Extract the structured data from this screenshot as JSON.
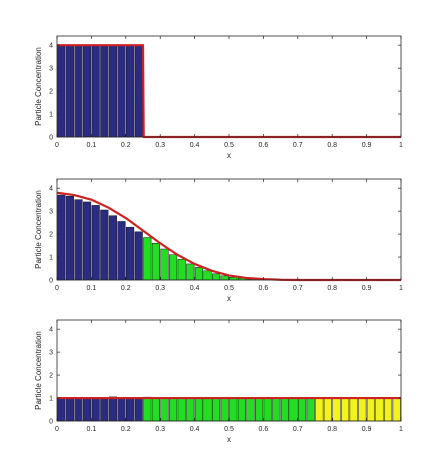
{
  "colors": {
    "blue": "#2b2b82",
    "green": "#22dd22",
    "yellow": "#f2f21c",
    "curve": "#cc2222",
    "axis": "#262626"
  },
  "chart_data": [
    {
      "type": "bar",
      "xlabel": "x",
      "ylabel": "Particle Concentration",
      "xlim": [
        0,
        1
      ],
      "ylim": [
        0,
        4.4
      ],
      "xticks": [
        "0",
        "0.1",
        "0.2",
        "0.3",
        "0.4",
        "0.5",
        "0.6",
        "0.7",
        "0.8",
        "0.9",
        "1"
      ],
      "yticks": [
        "0",
        "1",
        "2",
        "3",
        "4"
      ],
      "bin_width": 0.025,
      "segments": [
        {
          "color": "blue",
          "values": [
            4,
            4,
            4,
            4,
            4,
            4,
            4,
            4,
            4,
            4
          ]
        },
        {
          "color": "green",
          "values": [
            0,
            0,
            0,
            0,
            0,
            0,
            0,
            0,
            0,
            0,
            0,
            0,
            0,
            0,
            0,
            0,
            0,
            0,
            0,
            0
          ]
        },
        {
          "color": "yellow",
          "values": [
            0,
            0,
            0,
            0,
            0,
            0,
            0,
            0,
            0,
            0
          ]
        }
      ],
      "curve": {
        "x": [
          0,
          0.25,
          0.252,
          1
        ],
        "y": [
          4,
          4,
          0,
          0
        ]
      }
    },
    {
      "type": "bar",
      "xlabel": "x",
      "ylabel": "Particle Concentration",
      "xlim": [
        0,
        1
      ],
      "ylim": [
        0,
        4.4
      ],
      "xticks": [
        "0",
        "0.1",
        "0.2",
        "0.3",
        "0.4",
        "0.5",
        "0.6",
        "0.7",
        "0.8",
        "0.9",
        "1"
      ],
      "yticks": [
        "0",
        "1",
        "2",
        "3",
        "4"
      ],
      "bin_width": 0.025,
      "segments": [
        {
          "color": "blue",
          "values": [
            3.7,
            3.65,
            3.5,
            3.4,
            3.25,
            3.05,
            2.8,
            2.55,
            2.3,
            2.1
          ]
        },
        {
          "color": "green",
          "values": [
            1.85,
            1.6,
            1.35,
            1.1,
            0.9,
            0.7,
            0.55,
            0.4,
            0.27,
            0.18,
            0.12,
            0.08,
            0.04,
            0.02,
            0.01,
            0,
            0,
            0,
            0,
            0
          ]
        },
        {
          "color": "yellow",
          "values": [
            0,
            0,
            0,
            0,
            0,
            0,
            0,
            0,
            0,
            0
          ]
        }
      ],
      "curve": {
        "x": [
          0,
          0.05,
          0.1,
          0.15,
          0.2,
          0.25,
          0.3,
          0.35,
          0.4,
          0.45,
          0.5,
          0.55,
          0.6,
          0.65,
          0.7,
          1
        ],
        "y": [
          3.8,
          3.7,
          3.5,
          3.15,
          2.7,
          2.15,
          1.6,
          1.1,
          0.7,
          0.4,
          0.2,
          0.09,
          0.04,
          0.01,
          0,
          0
        ]
      }
    },
    {
      "type": "bar",
      "xlabel": "x",
      "ylabel": "Particle Concentration",
      "xlim": [
        0,
        1
      ],
      "ylim": [
        0,
        4.4
      ],
      "xticks": [
        "0",
        "0.1",
        "0.2",
        "0.3",
        "0.4",
        "0.5",
        "0.6",
        "0.7",
        "0.8",
        "0.9",
        "1"
      ],
      "yticks": [
        "0",
        "1",
        "2",
        "3",
        "4"
      ],
      "bin_width": 0.025,
      "segments": [
        {
          "color": "blue",
          "values": [
            0.97,
            1.02,
            0.98,
            1.03,
            0.97,
            1.01,
            1.05,
            0.99,
            1.02,
            0.98
          ]
        },
        {
          "color": "green",
          "values": [
            1.04,
            0.99,
            0.98,
            1.02,
            1.0,
            0.97,
            1.03,
            1.0,
            0.98,
            1.02,
            1.0,
            0.99,
            1.02,
            0.98,
            1.01,
            1.0,
            0.99,
            1.03,
            0.98,
            1.0
          ]
        },
        {
          "color": "yellow",
          "values": [
            1.0,
            1.02,
            0.98,
            1.01,
            0.99,
            1.02,
            1.0,
            0.98,
            1.01,
            1.0
          ]
        }
      ],
      "curve": {
        "x": [
          0,
          0.5,
          1
        ],
        "y": [
          1,
          1,
          1
        ]
      }
    }
  ]
}
